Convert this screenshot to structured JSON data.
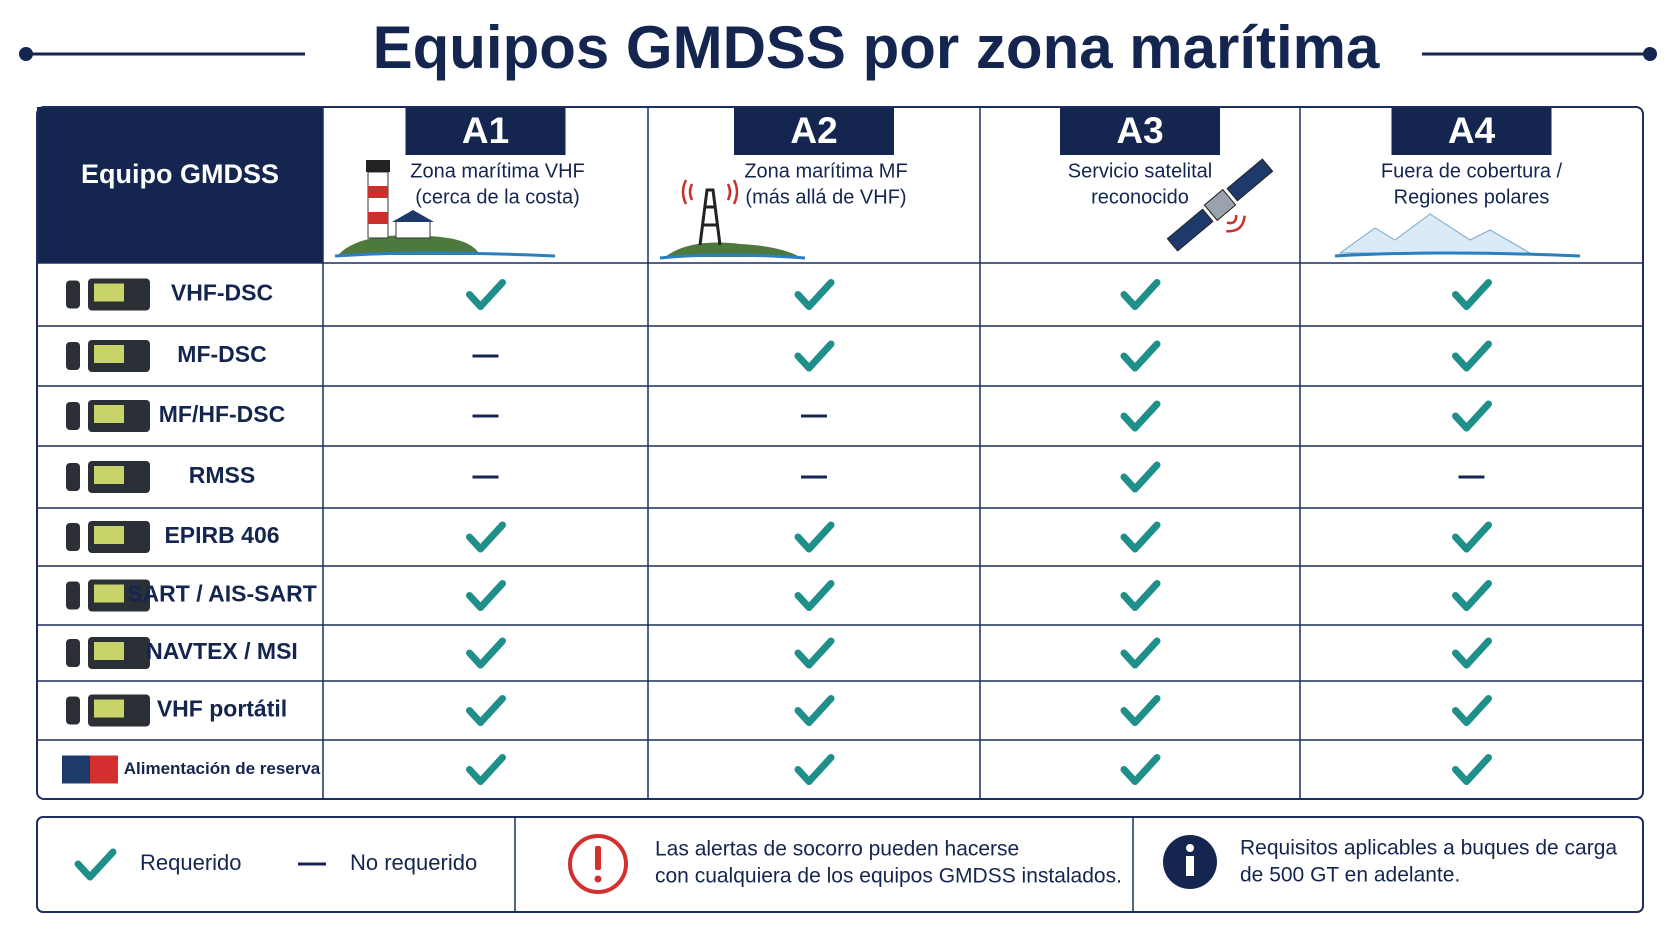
{
  "title": "Equipos GMDSS por zona marítima",
  "table": {
    "header": "Equipo GMDSS",
    "zones": [
      {
        "code": "A1",
        "description": [
          "Zona marítima VHF",
          "(cerca de la costa)"
        ]
      },
      {
        "code": "A2",
        "description": [
          "Zona marítima MF",
          "(más allá de VHF)"
        ]
      },
      {
        "code": "A3",
        "description": [
          "Servicio satelital",
          "reconocido"
        ]
      },
      {
        "code": "A4",
        "description": [
          "Fuera de cobertura /",
          "Regiones polares"
        ]
      }
    ],
    "rows": [
      {
        "equipment": "VHF-DSC",
        "required": [
          true,
          true,
          true,
          true
        ]
      },
      {
        "equipment": "MF-DSC",
        "required": [
          false,
          true,
          true,
          true
        ]
      },
      {
        "equipment": "MF/HF-DSC",
        "required": [
          false,
          false,
          true,
          true
        ]
      },
      {
        "equipment": "RMSS",
        "required": [
          false,
          false,
          true,
          false
        ]
      },
      {
        "equipment": "EPIRB 406",
        "required": [
          true,
          true,
          true,
          true
        ]
      },
      {
        "equipment": "SART / AIS-SART",
        "required": [
          true,
          true,
          true,
          true
        ]
      },
      {
        "equipment": "NAVTEX / MSI",
        "required": [
          true,
          true,
          true,
          true
        ]
      },
      {
        "equipment": "VHF portátil",
        "required": [
          true,
          true,
          true,
          true
        ]
      },
      {
        "equipment": "Alimentación de reserva",
        "required": [
          true,
          true,
          true,
          true
        ]
      }
    ]
  },
  "legend": {
    "required": "Requerido",
    "not_required": "No requerido"
  },
  "notes": [
    [
      "Las alertas de socorro pueden hacerse",
      "con cualquiera de los equipos GMDSS instalados."
    ],
    [
      "Requisitos aplicables a buques de carga",
      "de 500 GT en adelante."
    ]
  ]
}
